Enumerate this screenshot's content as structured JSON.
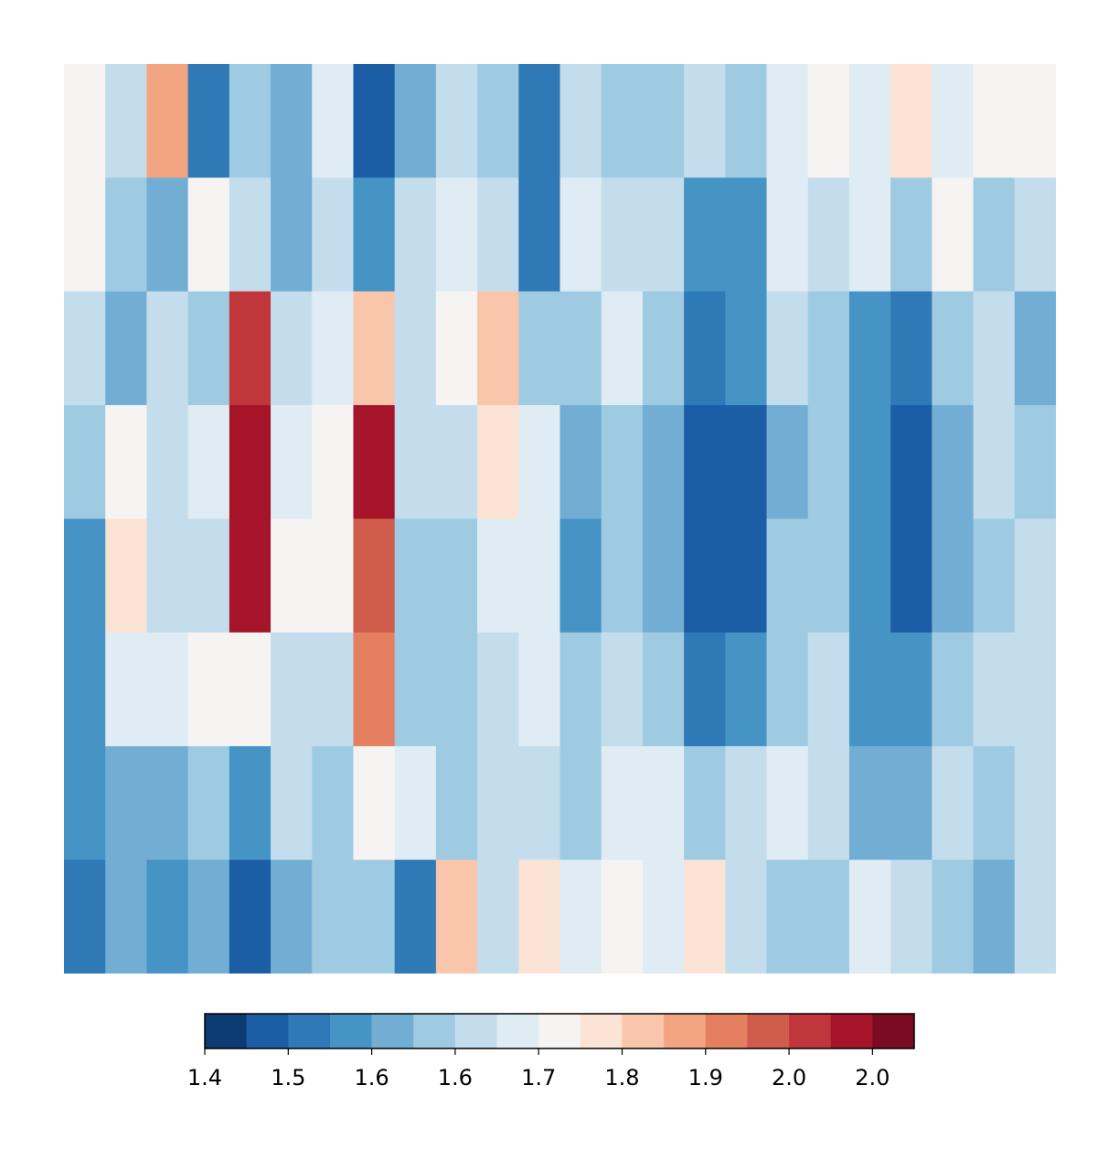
{
  "chart_data": {
    "type": "contourf",
    "z": [
      [
        1.74,
        1.66,
        1.86,
        1.5,
        1.62,
        1.58,
        1.7,
        1.46,
        1.58,
        1.66,
        1.62,
        1.5,
        1.66,
        1.62,
        1.62,
        1.66,
        1.62,
        1.7,
        1.74,
        1.7,
        1.78,
        1.7,
        1.74,
        1.74
      ],
      [
        1.74,
        1.62,
        1.58,
        1.74,
        1.66,
        1.58,
        1.66,
        1.54,
        1.66,
        1.7,
        1.66,
        1.5,
        1.7,
        1.66,
        1.66,
        1.54,
        1.54,
        1.7,
        1.66,
        1.7,
        1.62,
        1.74,
        1.62,
        1.66
      ],
      [
        1.66,
        1.58,
        1.66,
        1.62,
        1.98,
        1.66,
        1.7,
        1.82,
        1.66,
        1.74,
        1.82,
        1.62,
        1.62,
        1.7,
        1.62,
        1.5,
        1.54,
        1.66,
        1.62,
        1.54,
        1.5,
        1.62,
        1.66,
        1.58
      ],
      [
        1.62,
        1.74,
        1.66,
        1.7,
        2.02,
        1.7,
        1.74,
        2.02,
        1.66,
        1.66,
        1.78,
        1.7,
        1.58,
        1.62,
        1.58,
        1.46,
        1.46,
        1.58,
        1.62,
        1.54,
        1.46,
        1.58,
        1.66,
        1.62
      ],
      [
        1.54,
        1.78,
        1.66,
        1.66,
        2.02,
        1.74,
        1.74,
        1.94,
        1.62,
        1.62,
        1.7,
        1.7,
        1.54,
        1.62,
        1.58,
        1.46,
        1.46,
        1.62,
        1.62,
        1.54,
        1.46,
        1.58,
        1.62,
        1.66
      ],
      [
        1.54,
        1.7,
        1.7,
        1.74,
        1.74,
        1.66,
        1.66,
        1.9,
        1.62,
        1.62,
        1.66,
        1.7,
        1.62,
        1.66,
        1.62,
        1.5,
        1.54,
        1.62,
        1.66,
        1.54,
        1.54,
        1.62,
        1.66,
        1.66
      ],
      [
        1.54,
        1.58,
        1.58,
        1.62,
        1.54,
        1.66,
        1.62,
        1.74,
        1.7,
        1.62,
        1.66,
        1.66,
        1.62,
        1.7,
        1.7,
        1.62,
        1.66,
        1.7,
        1.66,
        1.58,
        1.58,
        1.66,
        1.62,
        1.66
      ],
      [
        1.5,
        1.58,
        1.54,
        1.58,
        1.46,
        1.58,
        1.62,
        1.62,
        1.5,
        1.82,
        1.66,
        1.78,
        1.7,
        1.74,
        1.7,
        1.78,
        1.66,
        1.62,
        1.62,
        1.7,
        1.66,
        1.62,
        1.58,
        1.66
      ]
    ],
    "levels": [
      1.4,
      1.44,
      1.48,
      1.52,
      1.56,
      1.6,
      1.64,
      1.68,
      1.72,
      1.76,
      1.8,
      1.84,
      1.88,
      1.92,
      1.96,
      2.0,
      2.04,
      2.08
    ],
    "colors": [
      "#0b3b70",
      "#1c5ea5",
      "#2e79b6",
      "#4694c5",
      "#72aed3",
      "#9ecbe2",
      "#c4dded",
      "#e0ecf3",
      "#f5f4f3",
      "#fbe3d6",
      "#f9c6ac",
      "#f3a481",
      "#e4805f",
      "#d05c4b",
      "#c0363a",
      "#a51429",
      "#7a0b22"
    ],
    "colorbar_ticks": [
      {
        "value": 1.4,
        "label": "1.4"
      },
      {
        "value": 1.48,
        "label": "1.5"
      },
      {
        "value": 1.56,
        "label": "1.6"
      },
      {
        "value": 1.64,
        "label": "1.6"
      },
      {
        "value": 1.72,
        "label": "1.7"
      },
      {
        "value": 1.8,
        "label": "1.8"
      },
      {
        "value": 1.88,
        "label": "1.9"
      },
      {
        "value": 1.96,
        "label": "2.0"
      },
      {
        "value": 2.04,
        "label": "2.0"
      }
    ]
  }
}
